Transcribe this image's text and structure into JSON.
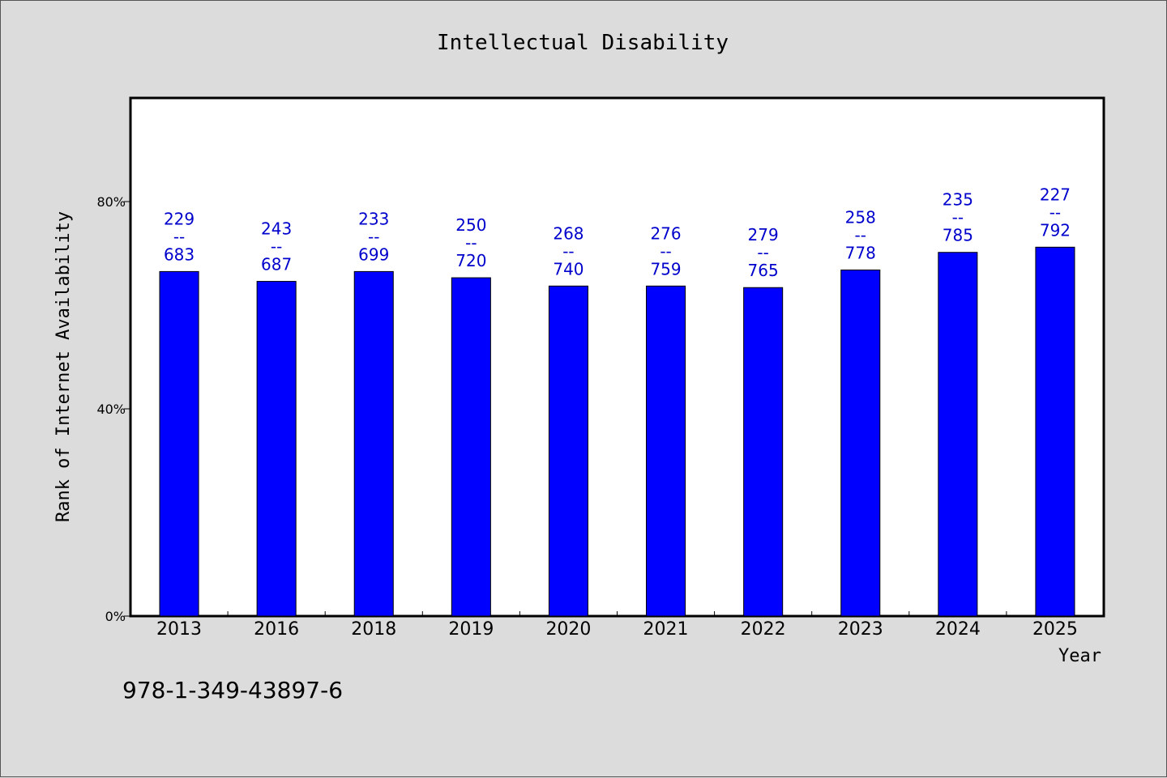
{
  "colors": {
    "bar": "#0000ff",
    "data_label": "#0000cc",
    "plot_bg": "#ffffff",
    "page_bg": "#dcdcdc"
  },
  "footer": {
    "isbn": "978-1-349-43897-6"
  },
  "chart_data": {
    "type": "bar",
    "title": "Intellectual Disability",
    "xlabel": "Year",
    "ylabel": "Rank of Internet Availability",
    "ylim": [
      0,
      100
    ],
    "yticks": [
      0,
      40,
      80
    ],
    "ytick_labels": [
      "0%",
      "40%",
      "80%"
    ],
    "grid": false,
    "categories": [
      "2013",
      "2016",
      "2018",
      "2019",
      "2020",
      "2021",
      "2022",
      "2023",
      "2024",
      "2025"
    ],
    "values": [
      66.5,
      64.6,
      66.5,
      65.3,
      63.7,
      63.7,
      63.4,
      66.8,
      70.2,
      71.2
    ],
    "labels": [
      [
        "229",
        "--",
        "683"
      ],
      [
        "243",
        "--",
        "687"
      ],
      [
        "233",
        "--",
        "699"
      ],
      [
        "250",
        "--",
        "720"
      ],
      [
        "268",
        "--",
        "740"
      ],
      [
        "276",
        "--",
        "759"
      ],
      [
        "279",
        "--",
        "765"
      ],
      [
        "258",
        "--",
        "778"
      ],
      [
        "235",
        "--",
        "785"
      ],
      [
        "227",
        "--",
        "792"
      ]
    ]
  }
}
